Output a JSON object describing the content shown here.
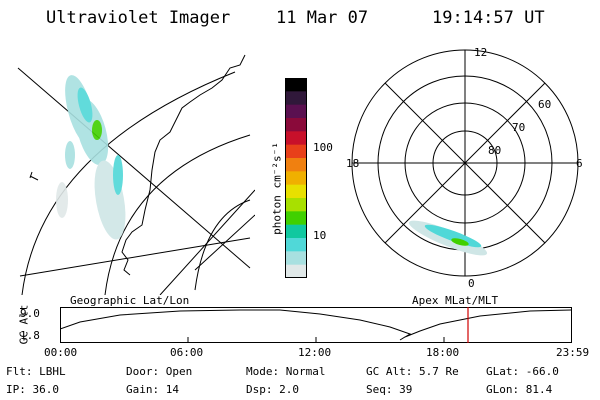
{
  "header": {
    "instrument": "Ultraviolet Imager",
    "date": "11 Mar 07",
    "time": "19:14:57 UT"
  },
  "colorbar": {
    "label": "photon cm⁻²s⁻¹",
    "ticks": [
      "100",
      "10"
    ],
    "colors": [
      "#000000",
      "#30183a",
      "#5a1050",
      "#8a0a3a",
      "#c8102a",
      "#e8401a",
      "#f08010",
      "#f0b000",
      "#e8e000",
      "#a8e000",
      "#40d000",
      "#10c8a0",
      "#50d8d8",
      "#a8e0e0",
      "#e0e8e8"
    ]
  },
  "polar_plot": {
    "mlt_labels": [
      "12",
      "18",
      "6",
      "0"
    ],
    "mlat_labels": [
      "60",
      "70",
      "80"
    ]
  },
  "timeline": {
    "left_title": "Geographic Lat/Lon",
    "right_title": "Apex MLat/MLT",
    "y_label": "GC Alt",
    "y_ticks": [
      "9.0",
      "1.8"
    ],
    "x_ticks": [
      "00:00",
      "06:00",
      "12:00",
      "18:00",
      "23:59"
    ],
    "marker_color": "#d00000"
  },
  "status": {
    "flt": "Flt: LBHL",
    "ip": "IP: 36.0",
    "door": "Door: Open",
    "gain": "Gain: 14",
    "mode": "Mode: Normal",
    "dsp": "Dsp:    2.0",
    "gcalt": "GC Alt: 5.7 Re",
    "seq": "Seq: 39",
    "glat": "GLat: -66.0",
    "glon": "GLon:  81.4"
  }
}
